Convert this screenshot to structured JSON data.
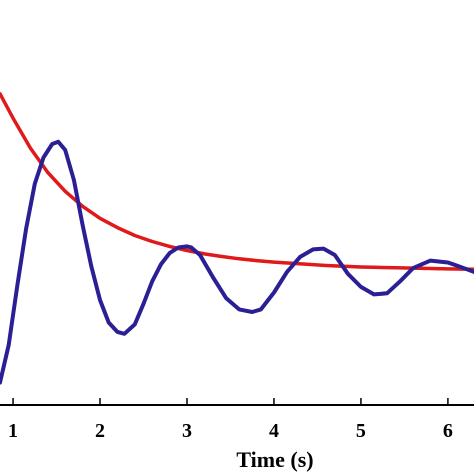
{
  "chart_data": {
    "type": "line",
    "title": "",
    "xlabel": "Time (s)",
    "ylabel": "",
    "xlim": [
      0.85,
      6.3
    ],
    "ylim": [
      0,
      1
    ],
    "xticks": [
      1,
      2,
      3,
      4,
      5,
      6
    ],
    "xtick_labels": [
      "1",
      "2",
      "3",
      "4",
      "5",
      "6"
    ],
    "grid": false,
    "legend": "none",
    "series": [
      {
        "color": "#e01a1a",
        "x": [
          0.85,
          1.0,
          1.2,
          1.4,
          1.6,
          1.8,
          2.0,
          2.2,
          2.4,
          2.6,
          2.8,
          3.0,
          3.2,
          3.4,
          3.6,
          3.8,
          4.0,
          4.2,
          4.4,
          4.6,
          4.8,
          5.0,
          5.2,
          5.4,
          5.6,
          5.8,
          6.0,
          6.3
        ],
        "y": [
          0.79,
          0.725,
          0.645,
          0.58,
          0.53,
          0.49,
          0.458,
          0.433,
          0.412,
          0.396,
          0.383,
          0.372,
          0.363,
          0.356,
          0.35,
          0.345,
          0.341,
          0.338,
          0.335,
          0.332,
          0.33,
          0.328,
          0.327,
          0.326,
          0.325,
          0.324,
          0.323,
          0.322
        ]
      },
      {
        "color": "#2b1f94",
        "x": [
          0.85,
          0.95,
          1.05,
          1.15,
          1.25,
          1.35,
          1.45,
          1.52,
          1.6,
          1.7,
          1.8,
          1.9,
          2.0,
          2.1,
          2.2,
          2.28,
          2.4,
          2.5,
          2.6,
          2.7,
          2.8,
          2.9,
          3.0,
          3.05,
          3.15,
          3.3,
          3.45,
          3.6,
          3.75,
          3.85,
          4.0,
          4.15,
          4.3,
          4.45,
          4.57,
          4.7,
          4.85,
          5.0,
          5.15,
          5.3,
          5.45,
          5.6,
          5.8,
          6.0,
          6.1,
          6.3
        ],
        "y": [
          0.02,
          0.12,
          0.28,
          0.43,
          0.55,
          0.62,
          0.656,
          0.662,
          0.64,
          0.56,
          0.44,
          0.33,
          0.24,
          0.18,
          0.155,
          0.15,
          0.175,
          0.23,
          0.29,
          0.335,
          0.365,
          0.38,
          0.383,
          0.38,
          0.36,
          0.3,
          0.245,
          0.215,
          0.208,
          0.215,
          0.26,
          0.315,
          0.355,
          0.375,
          0.377,
          0.36,
          0.31,
          0.275,
          0.255,
          0.258,
          0.29,
          0.325,
          0.345,
          0.34,
          0.332,
          0.315
        ]
      }
    ]
  }
}
